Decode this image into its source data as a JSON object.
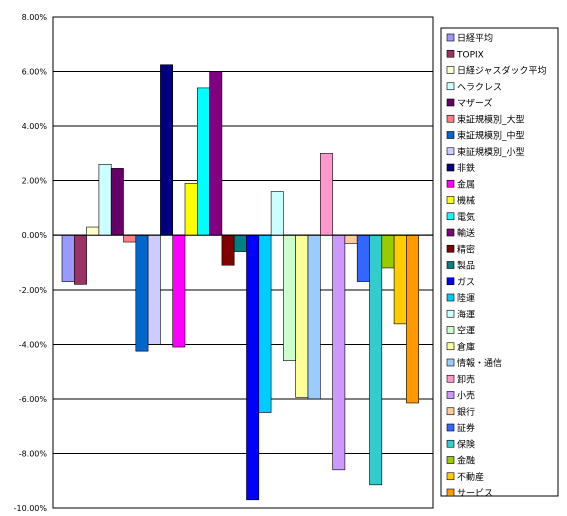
{
  "chart_data": {
    "type": "bar",
    "title": "",
    "xlabel": "",
    "ylabel": "",
    "ylim": [
      -10,
      8
    ],
    "y_tick_step": 2,
    "y_tick_labels": [
      "8.00%",
      "6.00%",
      "4.00%",
      "2.00%",
      "0.00%",
      "-2.00%",
      "-4.00%",
      "-6.00%",
      "-8.00%",
      "-10.00%"
    ],
    "grid": "horizontal",
    "legend_position": "right",
    "series": [
      {
        "name": "日経平均",
        "value": -1.7,
        "color": "#9999ff"
      },
      {
        "name": "TOPIX",
        "value": -1.8,
        "color": "#993366"
      },
      {
        "name": "日経ジャスダック平均",
        "value": 0.3,
        "color": "#ffffcc"
      },
      {
        "name": "ヘラクレス",
        "value": 2.6,
        "color": "#ccffff"
      },
      {
        "name": "マザーズ",
        "value": 2.45,
        "color": "#660066"
      },
      {
        "name": "東証規模別_大型",
        "value": -0.25,
        "color": "#ff8080"
      },
      {
        "name": "東証規模別_中型",
        "value": -4.25,
        "color": "#0066cc"
      },
      {
        "name": "東証規模別_小型",
        "value": -4.0,
        "color": "#ccccff"
      },
      {
        "name": "非鉄",
        "value": 6.25,
        "color": "#000080"
      },
      {
        "name": "金属",
        "value": -4.1,
        "color": "#ff00ff"
      },
      {
        "name": "機械",
        "value": 1.9,
        "color": "#ffff00"
      },
      {
        "name": "電気",
        "value": 5.4,
        "color": "#00ffff"
      },
      {
        "name": "輸送",
        "value": 6.0,
        "color": "#800080"
      },
      {
        "name": "精密",
        "value": -1.1,
        "color": "#800000"
      },
      {
        "name": "製品",
        "value": -0.6,
        "color": "#008080"
      },
      {
        "name": "ガス",
        "value": -9.7,
        "color": "#0000ff"
      },
      {
        "name": "陸運",
        "value": -6.5,
        "color": "#00ccff"
      },
      {
        "name": "海運",
        "value": 1.6,
        "color": "#ccffff"
      },
      {
        "name": "空運",
        "value": -4.6,
        "color": "#ccffcc"
      },
      {
        "name": "倉庫",
        "value": -5.95,
        "color": "#ffff99"
      },
      {
        "name": "情報・通信",
        "value": -6.0,
        "color": "#99ccff"
      },
      {
        "name": "卸売",
        "value": 3.0,
        "color": "#ff99cc"
      },
      {
        "name": "小売",
        "value": -8.6,
        "color": "#cc99ff"
      },
      {
        "name": "銀行",
        "value": -0.3,
        "color": "#ffcc99"
      },
      {
        "name": "証券",
        "value": -1.7,
        "color": "#3366ff"
      },
      {
        "name": "保険",
        "value": -9.15,
        "color": "#33cccc"
      },
      {
        "name": "金融",
        "value": -1.2,
        "color": "#99cc00"
      },
      {
        "name": "不動産",
        "value": -3.25,
        "color": "#ffcc00"
      },
      {
        "name": "サービス",
        "value": -6.15,
        "color": "#ff9900"
      }
    ]
  }
}
